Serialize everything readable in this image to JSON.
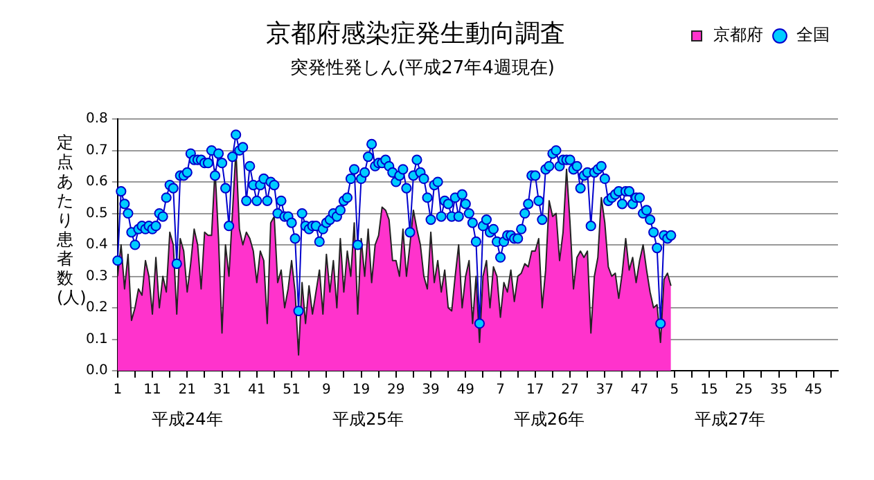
{
  "chart_data": {
    "type": "area",
    "title": "京都府感染症発生動向調査",
    "subtitle": "突発性発しん(平成27年4週現在)",
    "ylabel": "定点あたり患者数(人)",
    "annotations": [
      "平成24年",
      "平成25年",
      "平成26年",
      "平成27年"
    ],
    "categories": [
      "1",
      null,
      null,
      null,
      null,
      null,
      null,
      null,
      null,
      null,
      "11",
      null,
      null,
      null,
      null,
      null,
      null,
      null,
      null,
      null,
      "21",
      null,
      null,
      null,
      null,
      null,
      null,
      null,
      null,
      null,
      "31",
      null,
      null,
      null,
      null,
      null,
      null,
      null,
      null,
      null,
      "41",
      null,
      null,
      null,
      null,
      null,
      null,
      null,
      null,
      null,
      "51",
      null,
      null,
      null,
      null,
      null,
      null,
      null,
      null,
      null,
      "9",
      null,
      null,
      null,
      null,
      null,
      null,
      null,
      null,
      null,
      "19",
      null,
      null,
      null,
      null,
      null,
      null,
      null,
      null,
      null,
      "29",
      null,
      null,
      null,
      null,
      null,
      null,
      null,
      null,
      null,
      "39",
      null,
      null,
      null,
      null,
      null,
      null,
      null,
      null,
      null,
      "49",
      null,
      null,
      null,
      null,
      null,
      null,
      null,
      null,
      null,
      "7",
      null,
      null,
      null,
      null,
      null,
      null,
      null,
      null,
      null,
      "17",
      null,
      null,
      null,
      null,
      null,
      null,
      null,
      null,
      null,
      "27",
      null,
      null,
      null,
      null,
      null,
      null,
      null,
      null,
      null,
      "37",
      null,
      null,
      null,
      null,
      null,
      null,
      null,
      null,
      null,
      "47",
      null,
      null,
      null,
      null,
      null,
      null,
      null,
      null,
      null,
      "5",
      null,
      null,
      null,
      null,
      null,
      null,
      null,
      null,
      null,
      "15",
      null,
      null,
      null,
      null,
      null,
      null,
      null,
      null,
      null,
      "25",
      null,
      null,
      null,
      null,
      null,
      null,
      null,
      null,
      null,
      "35",
      null,
      null,
      null,
      null,
      null,
      null,
      null,
      null,
      null,
      "45",
      null,
      null,
      null,
      null,
      null,
      null,
      null
    ],
    "series": [
      {
        "name": "京都府",
        "color": "#ff33cc",
        "values": [
          0.3,
          0.4,
          0.26,
          0.37,
          0.16,
          0.2,
          0.26,
          0.24,
          0.35,
          0.3,
          0.18,
          0.36,
          0.2,
          0.3,
          0.25,
          0.44,
          0.4,
          0.18,
          0.42,
          0.38,
          0.25,
          0.34,
          0.45,
          0.4,
          0.26,
          0.44,
          0.43,
          0.43,
          0.64,
          0.42,
          0.12,
          0.4,
          0.3,
          0.5,
          0.7,
          0.45,
          0.4,
          0.44,
          0.42,
          0.38,
          0.28,
          0.38,
          0.35,
          0.15,
          0.47,
          0.49,
          0.28,
          0.32,
          0.2,
          0.26,
          0.35,
          0.25,
          0.05,
          0.28,
          0.15,
          0.27,
          0.18,
          0.25,
          0.32,
          0.18,
          0.37,
          0.25,
          0.35,
          0.2,
          0.42,
          0.25,
          0.38,
          0.3,
          0.47,
          0.18,
          0.42,
          0.3,
          0.45,
          0.28,
          0.4,
          0.43,
          0.52,
          0.51,
          0.48,
          0.35,
          0.35,
          0.3,
          0.45,
          0.3,
          0.4,
          0.51,
          0.45,
          0.4,
          0.3,
          0.26,
          0.44,
          0.28,
          0.35,
          0.25,
          0.32,
          0.2,
          0.19,
          0.3,
          0.4,
          0.2,
          0.3,
          0.35,
          0.15,
          0.3,
          0.09,
          0.3,
          0.35,
          0.2,
          0.33,
          0.3,
          0.17,
          0.28,
          0.25,
          0.32,
          0.22,
          0.3,
          0.31,
          0.34,
          0.33,
          0.38,
          0.38,
          0.42,
          0.2,
          0.32,
          0.54,
          0.49,
          0.5,
          0.35,
          0.44,
          0.64,
          0.47,
          0.26,
          0.36,
          0.38,
          0.36,
          0.38,
          0.12,
          0.3,
          0.36,
          0.55,
          0.47,
          0.33,
          0.3,
          0.31,
          0.23,
          0.31,
          0.42,
          0.32,
          0.36,
          0.28,
          0.35,
          0.4,
          0.32,
          0.25,
          0.2,
          0.21,
          0.09,
          0.29,
          0.31,
          0.27,
          null,
          null,
          null,
          null,
          null,
          null,
          null,
          null,
          null,
          null,
          null,
          null,
          null,
          null,
          null,
          null,
          null,
          null,
          null,
          null,
          null,
          null,
          null,
          null,
          null,
          null,
          null,
          null,
          null,
          null,
          null,
          null,
          null,
          null,
          null,
          null,
          null,
          null,
          null,
          null,
          null,
          null,
          null,
          null,
          null,
          null,
          null,
          null
        ]
      },
      {
        "name": "全国",
        "type": "line",
        "marker": "circle",
        "color": "#0000cc",
        "values": [
          0.35,
          0.57,
          0.53,
          0.5,
          0.44,
          0.4,
          0.45,
          0.46,
          0.45,
          0.46,
          0.45,
          0.46,
          0.5,
          0.49,
          0.55,
          0.59,
          0.58,
          0.34,
          0.62,
          0.62,
          0.63,
          0.69,
          0.67,
          0.67,
          0.67,
          0.66,
          0.66,
          0.7,
          0.62,
          0.69,
          0.66,
          0.58,
          0.46,
          0.68,
          0.75,
          0.7,
          0.71,
          0.54,
          0.65,
          0.59,
          0.54,
          0.59,
          0.61,
          0.54,
          0.6,
          0.59,
          0.5,
          0.54,
          0.49,
          0.49,
          0.47,
          0.42,
          0.19,
          0.5,
          0.46,
          0.45,
          0.46,
          0.46,
          0.41,
          0.45,
          0.47,
          0.48,
          0.5,
          0.49,
          0.51,
          0.54,
          0.55,
          0.61,
          0.64,
          0.4,
          0.61,
          0.63,
          0.68,
          0.72,
          0.65,
          0.66,
          0.66,
          0.67,
          0.65,
          0.63,
          0.6,
          0.62,
          0.64,
          0.58,
          0.44,
          0.62,
          0.67,
          0.63,
          0.61,
          0.55,
          0.48,
          0.59,
          0.6,
          0.49,
          0.54,
          0.53,
          0.49,
          0.55,
          0.49,
          0.56,
          0.53,
          0.5,
          0.47,
          0.41,
          0.15,
          0.46,
          0.48,
          0.44,
          0.45,
          0.41,
          0.36,
          0.41,
          0.43,
          0.43,
          0.42,
          0.42,
          0.45,
          0.5,
          0.53,
          0.62,
          0.62,
          0.54,
          0.48,
          0.64,
          0.65,
          0.69,
          0.7,
          0.65,
          0.67,
          0.67,
          0.67,
          0.64,
          0.65,
          0.58,
          0.62,
          0.63,
          0.46,
          0.63,
          0.64,
          0.65,
          0.61,
          0.54,
          0.55,
          0.56,
          0.57,
          0.53,
          0.57,
          0.57,
          0.53,
          0.55,
          0.55,
          0.5,
          0.51,
          0.48,
          0.44,
          0.39,
          0.15,
          0.43,
          0.42,
          0.43,
          null,
          null,
          null,
          null,
          null,
          null,
          null,
          null,
          null,
          null,
          null,
          null,
          null,
          null,
          null,
          null,
          null,
          null,
          null,
          null,
          null,
          null,
          null,
          null,
          null,
          null,
          null,
          null,
          null,
          null,
          null,
          null,
          null,
          null,
          null,
          null,
          null,
          null,
          null,
          null,
          null,
          null,
          null,
          null,
          null,
          null,
          null,
          null
        ]
      }
    ],
    "ylim": [
      0,
      0.8
    ],
    "yticks": [
      {
        "value": 0,
        "label": "0.0"
      },
      {
        "value": 0.1,
        "label": "0.1"
      },
      {
        "value": 0.2,
        "label": "0.2"
      },
      {
        "value": 0.3,
        "label": "0.3"
      },
      {
        "value": 0.4,
        "label": "0.4"
      },
      {
        "value": 0.5,
        "label": "0.5"
      },
      {
        "value": 0.6,
        "label": "0.6"
      },
      {
        "value": 0.7,
        "label": "0.7"
      },
      {
        "value": 0.8,
        "label": "0.8"
      }
    ],
    "grid": "y",
    "legend": "top right"
  }
}
